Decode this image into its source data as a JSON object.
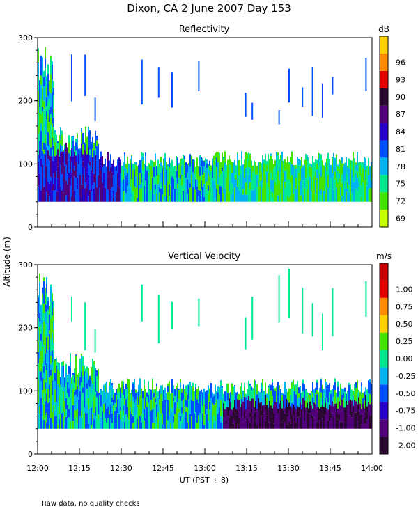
{
  "page": {
    "title": "Dixon, CA   2 June 2007   Day 153",
    "ylabel": "Altitude (m)",
    "xlabel": "UT   (PST + 8)",
    "footnote": "Raw data, no quality checks"
  },
  "chart_data": [
    {
      "type": "heatmap",
      "id": "reflectivity",
      "title": "Reflectivity",
      "colorbar_unit": "dB",
      "colorbar_ticks": [
        "69",
        "72",
        "75",
        "78",
        "81",
        "84",
        "87",
        "90",
        "93",
        "96"
      ],
      "colorbar_colors": [
        "#c8ff00",
        "#44e400",
        "#00e890",
        "#00b4f0",
        "#0050ff",
        "#2800c8",
        "#500078",
        "#2a0830",
        "#e40000",
        "#ff8c00",
        "#ffd000"
      ],
      "ylim": [
        0,
        300
      ],
      "yticks": [
        "0",
        "100",
        "200",
        "300"
      ],
      "xlim": [
        "12:00",
        "14:00"
      ],
      "xticks": [
        "12:00",
        "12:15",
        "12:30",
        "12:45",
        "13:00",
        "13:15",
        "13:30",
        "13:45",
        "14:00"
      ],
      "description": "Dense echo layer from ~40 m to ~120 m altitude across the full period; deeper returns up to ~300 m before 12:20; scattered columns near 13:15-13:45."
    },
    {
      "type": "heatmap",
      "id": "vertical-velocity",
      "title": "Vertical Velocity",
      "colorbar_unit": "m/s",
      "colorbar_ticks": [
        "-2.00",
        "-1.00",
        "-0.75",
        "-0.50",
        "-0.25",
        "0.00",
        "0.25",
        "0.50",
        "0.75",
        "1.00"
      ],
      "colorbar_colors": [
        "#2a0830",
        "#500078",
        "#2800c8",
        "#0050ff",
        "#00b4f0",
        "#00e890",
        "#44e400",
        "#ffd000",
        "#ff8c00",
        "#e40000",
        "#c80000"
      ],
      "ylim": [
        0,
        300
      ],
      "yticks": [
        "0",
        "100",
        "200",
        "300"
      ],
      "xlim": [
        "12:00",
        "14:00"
      ],
      "xticks": [
        "12:00",
        "12:15",
        "12:30",
        "12:45",
        "13:00",
        "13:15",
        "13:30",
        "13:45",
        "14:00"
      ],
      "description": "Mostly -0.25 to 0.25 m/s in the 40-120 m layer; strong downward (-1 to -2 m/s) near the bottom after 13:15; scattered upper columns."
    }
  ]
}
